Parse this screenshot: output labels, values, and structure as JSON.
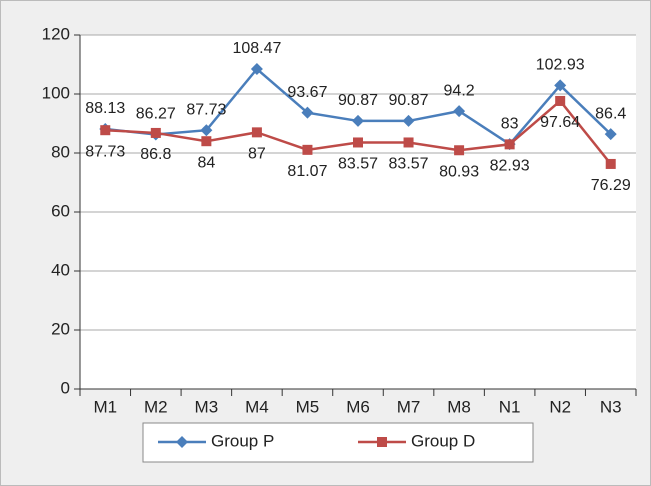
{
  "chart_data": {
    "type": "line",
    "categories": [
      "M1",
      "M2",
      "M3",
      "M4",
      "M5",
      "M6",
      "M7",
      "M8",
      "N1",
      "N2",
      "N3"
    ],
    "series": [
      {
        "name": "Group P",
        "color": "#4a7ebb",
        "marker": "diamond",
        "values": [
          88.13,
          86.27,
          87.73,
          108.47,
          93.67,
          90.87,
          90.87,
          94.2,
          83,
          102.93,
          86.4
        ]
      },
      {
        "name": "Group D",
        "color": "#be4b48",
        "marker": "square",
        "values": [
          87.73,
          86.8,
          84,
          87,
          81.07,
          83.57,
          83.57,
          80.93,
          82.93,
          97.64,
          76.29
        ]
      }
    ],
    "ylim": [
      0,
      120
    ],
    "yticks": [
      0,
      20,
      40,
      60,
      80,
      100,
      120
    ],
    "grid": true
  }
}
